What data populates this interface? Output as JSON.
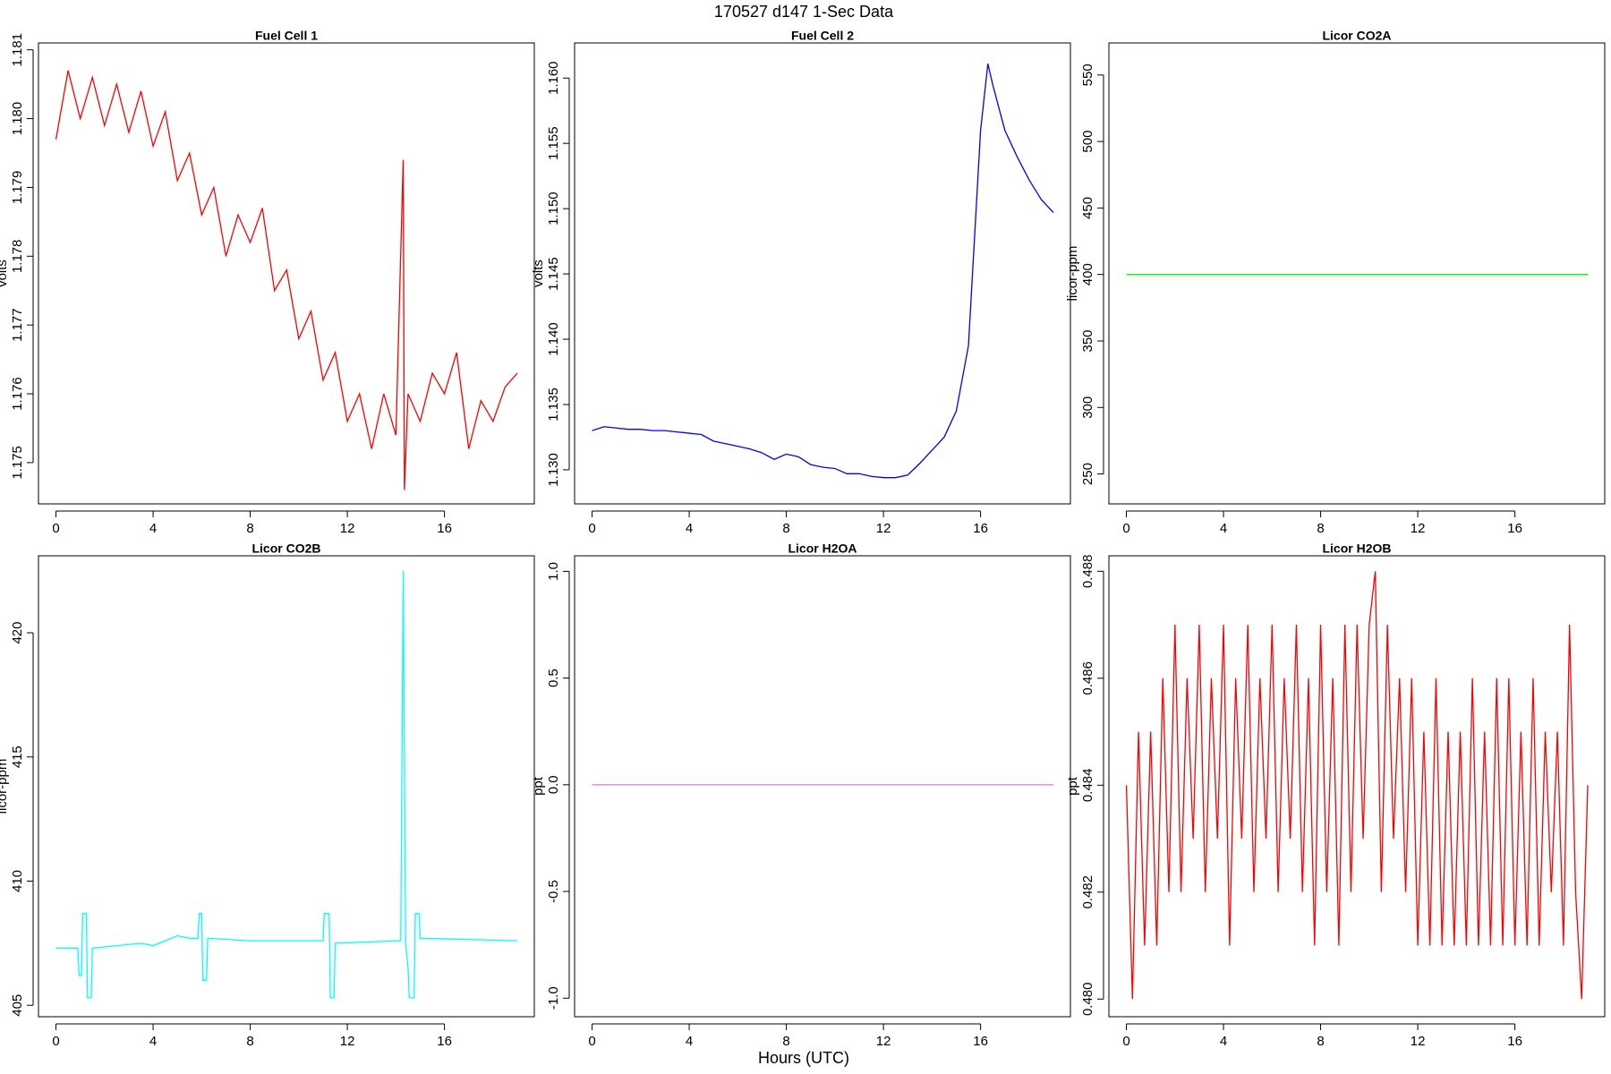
{
  "title": "170527   d147   1-Sec Data",
  "xlabel": "Hours (UTC)",
  "chart_data": [
    {
      "type": "line",
      "title": "Fuel Cell 1",
      "ylabel": "volts",
      "xlim": [
        -0.72,
        19.7
      ],
      "xticks": [
        0,
        4,
        8,
        12,
        16
      ],
      "ylim": [
        1.1744,
        1.1811
      ],
      "yticks": [
        1.175,
        1.176,
        1.177,
        1.178,
        1.179,
        {
          "value": 1.18,
          "label": "1.180"
        },
        1.181
      ],
      "series": [
        {
          "color": "#ff0000",
          "x": [
            0,
            0.5,
            1,
            1.5,
            2,
            2.5,
            3,
            3.5,
            4,
            4.5,
            5,
            5.5,
            6,
            6.5,
            7,
            7.5,
            8,
            8.5,
            9,
            9.5,
            10,
            10.5,
            11,
            11.5,
            12,
            12.5,
            13,
            13.5,
            14,
            14.3,
            14.35,
            14.5,
            15,
            15.5,
            16,
            16.5,
            17,
            17.5,
            18,
            18.5,
            19
          ],
          "values": [
            1.1797,
            1.1807,
            1.18,
            1.1806,
            1.1799,
            1.1805,
            1.1798,
            1.1804,
            1.1796,
            1.1801,
            1.1791,
            1.1795,
            1.1786,
            1.179,
            1.178,
            1.1786,
            1.1782,
            1.1787,
            1.1775,
            1.1778,
            1.1768,
            1.1772,
            1.1762,
            1.1766,
            1.1756,
            1.176,
            1.1752,
            1.176,
            1.1754,
            1.1794,
            1.1746,
            1.176,
            1.1756,
            1.1763,
            1.176,
            1.1766,
            1.1752,
            1.1759,
            1.1756,
            1.1761,
            1.1763
          ]
        }
      ]
    },
    {
      "type": "line",
      "title": "Fuel Cell 2",
      "ylabel": "volts",
      "xlim": [
        -0.72,
        19.7
      ],
      "xticks": [
        0,
        4,
        8,
        12,
        16
      ],
      "ylim": [
        1.12739,
        1.16269
      ],
      "yticks": [
        {
          "value": 1.13,
          "label": "1.130"
        },
        1.135,
        {
          "value": 1.14,
          "label": "1.140"
        },
        1.145,
        {
          "value": 1.15,
          "label": "1.150"
        },
        1.155,
        {
          "value": 1.16,
          "label": "1.160"
        }
      ],
      "series": [
        {
          "color": "#0000ff",
          "x": [
            0,
            0.5,
            1,
            1.5,
            2,
            2.5,
            3,
            3.5,
            4,
            4.5,
            5,
            5.5,
            6,
            6.5,
            7,
            7.5,
            8,
            8.5,
            9,
            9.5,
            10,
            10.5,
            11,
            11.5,
            12,
            12.5,
            13,
            13.5,
            14,
            14.5,
            15,
            15.5,
            16,
            16.3,
            16.5,
            17,
            17.5,
            18,
            18.5,
            19
          ],
          "values": [
            1.133,
            1.1333,
            1.1332,
            1.1331,
            1.1331,
            1.133,
            1.133,
            1.1329,
            1.1328,
            1.1327,
            1.1322,
            1.132,
            1.1318,
            1.1316,
            1.1313,
            1.1308,
            1.1312,
            1.131,
            1.1304,
            1.1302,
            1.1301,
            1.1297,
            1.1297,
            1.1295,
            1.1294,
            1.1294,
            1.1296,
            1.1305,
            1.1315,
            1.1325,
            1.1345,
            1.1395,
            1.156,
            1.1611,
            1.1595,
            1.156,
            1.154,
            1.1522,
            1.1507,
            1.1497
          ]
        }
      ]
    },
    {
      "type": "line",
      "title": "Licor CO2A",
      "ylabel": "licor-ppm",
      "xlim": [
        -0.72,
        19.7
      ],
      "xticks": [
        0,
        4,
        8,
        12,
        16
      ],
      "ylim": [
        227.5,
        574.1
      ],
      "yticks": [
        250,
        300,
        350,
        400,
        450,
        500,
        550
      ],
      "series": [
        {
          "color": "#00ff00",
          "x": [
            0,
            19
          ],
          "values": [
            400,
            400
          ]
        }
      ]
    },
    {
      "type": "line",
      "title": "Licor CO2B",
      "ylabel": "licor-ppm",
      "xlim": [
        -0.72,
        19.7
      ],
      "xticks": [
        0,
        4,
        8,
        12,
        16
      ],
      "ylim": [
        404.54,
        423.1
      ],
      "yticks": [
        405,
        410,
        415,
        420
      ],
      "series": [
        {
          "color": "#00ffff",
          "x": [
            0,
            0.9,
            0.95,
            1.05,
            1.1,
            1.25,
            1.3,
            1.45,
            1.5,
            3.5,
            4,
            5,
            5.5,
            5.85,
            5.9,
            6.0,
            6.05,
            6.2,
            6.25,
            8,
            11,
            11.05,
            11.25,
            11.3,
            11.45,
            11.5,
            14.2,
            14.3,
            14.4,
            14.5,
            14.55,
            14.75,
            14.8,
            14.95,
            15,
            19
          ],
          "values": [
            407.3,
            407.3,
            406.2,
            406.2,
            408.7,
            408.7,
            405.3,
            405.3,
            407.3,
            407.5,
            407.4,
            407.8,
            407.7,
            407.7,
            408.7,
            408.7,
            406.0,
            406.0,
            407.7,
            407.6,
            407.6,
            408.7,
            408.7,
            405.3,
            405.3,
            407.5,
            407.6,
            422.5,
            407.5,
            406.5,
            405.3,
            405.3,
            408.7,
            408.7,
            407.7,
            407.6
          ]
        }
      ]
    },
    {
      "type": "line",
      "title": "Licor H2OA",
      "ylabel": "ppt",
      "xlim": [
        -0.72,
        19.7
      ],
      "xticks": [
        0,
        4,
        8,
        12,
        16
      ],
      "ylim": [
        -1.087,
        1.073
      ],
      "yticks": [
        {
          "value": -1,
          "label": "-1.0"
        },
        -0.5,
        {
          "value": 0,
          "label": "0.0"
        },
        0.5,
        {
          "value": 1,
          "label": "1.0"
        }
      ],
      "series": [
        {
          "color": "#dd88dd",
          "x": [
            0,
            19
          ],
          "values": [
            0,
            0
          ]
        }
      ]
    },
    {
      "type": "line",
      "title": "Licor H2OB",
      "ylabel": "ppt",
      "xlim": [
        -0.72,
        19.7
      ],
      "xticks": [
        0,
        4,
        8,
        12,
        16
      ],
      "ylim": [
        0.47967,
        0.48829
      ],
      "yticks": [
        {
          "value": 0.48,
          "label": "0.480"
        },
        0.482,
        0.484,
        0.486,
        0.488
      ],
      "series": [
        {
          "color": "#ff0000",
          "x": [
            0,
            0.25,
            0.5,
            0.75,
            1,
            1.25,
            1.5,
            1.75,
            2,
            2.25,
            2.5,
            2.75,
            3,
            3.25,
            3.5,
            3.75,
            4,
            4.25,
            4.5,
            4.75,
            5,
            5.25,
            5.5,
            5.75,
            6,
            6.25,
            6.5,
            6.75,
            7,
            7.25,
            7.5,
            7.75,
            8,
            8.25,
            8.5,
            8.75,
            9,
            9.25,
            9.5,
            9.75,
            10,
            10.25,
            10.5,
            10.75,
            11,
            11.25,
            11.5,
            11.75,
            12,
            12.25,
            12.5,
            12.75,
            13,
            13.25,
            13.5,
            13.75,
            14,
            14.25,
            14.5,
            14.75,
            15,
            15.25,
            15.5,
            15.75,
            16,
            16.25,
            16.5,
            16.75,
            17,
            17.25,
            17.5,
            17.75,
            18,
            18.25,
            18.5,
            18.75,
            19
          ],
          "values": [
            0.484,
            0.48,
            0.485,
            0.481,
            0.485,
            0.481,
            0.486,
            0.482,
            0.487,
            0.482,
            0.486,
            0.483,
            0.487,
            0.482,
            0.486,
            0.483,
            0.487,
            0.481,
            0.486,
            0.483,
            0.487,
            0.482,
            0.486,
            0.483,
            0.487,
            0.482,
            0.486,
            0.483,
            0.487,
            0.482,
            0.486,
            0.481,
            0.487,
            0.482,
            0.486,
            0.481,
            0.487,
            0.482,
            0.487,
            0.483,
            0.487,
            0.488,
            0.482,
            0.487,
            0.483,
            0.486,
            0.482,
            0.486,
            0.481,
            0.485,
            0.481,
            0.486,
            0.481,
            0.485,
            0.481,
            0.485,
            0.481,
            0.486,
            0.481,
            0.485,
            0.481,
            0.486,
            0.481,
            0.486,
            0.481,
            0.485,
            0.481,
            0.486,
            0.481,
            0.485,
            0.482,
            0.485,
            0.481,
            0.487,
            0.482,
            0.48,
            0.484
          ]
        }
      ]
    }
  ]
}
